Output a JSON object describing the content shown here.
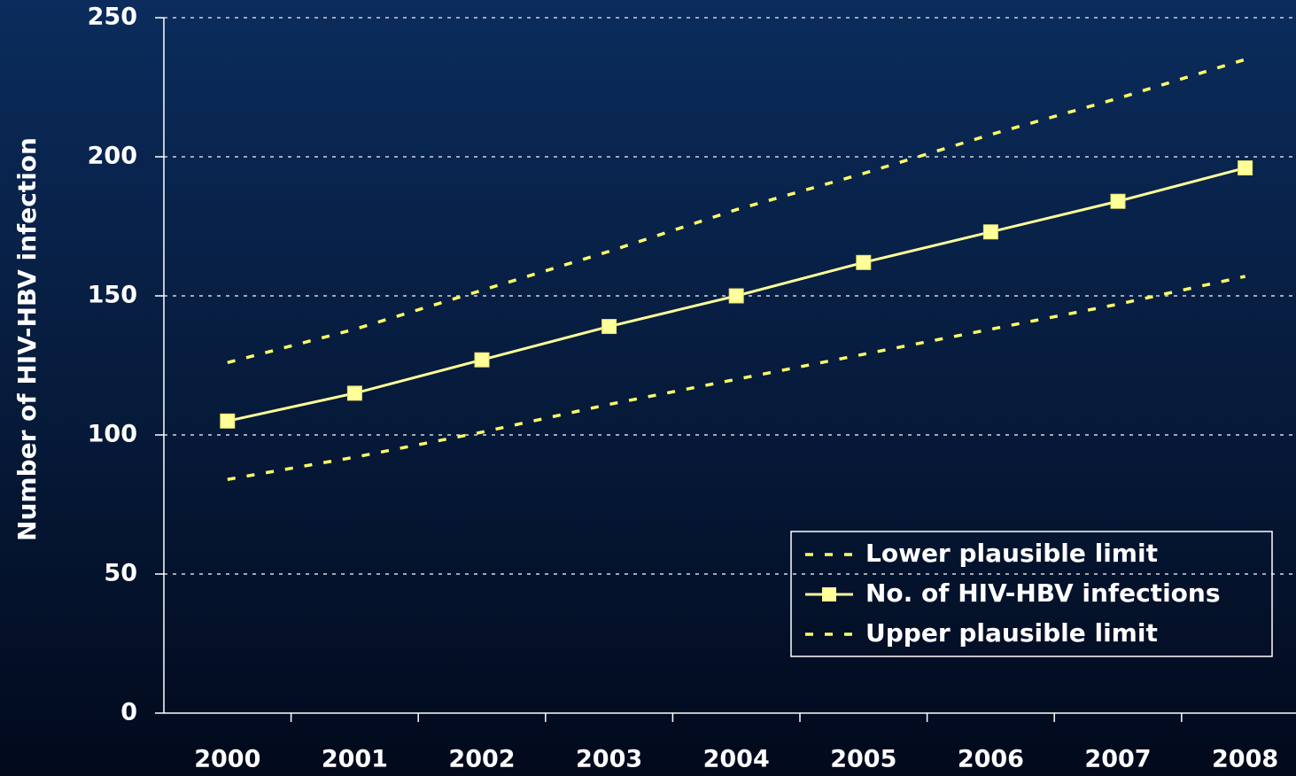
{
  "chart_data": {
    "type": "line",
    "y_label": "Number of HIV-HBV infection",
    "categories": [
      "2000",
      "2001",
      "2002",
      "2003",
      "2004",
      "2005",
      "2006",
      "2007",
      "2008"
    ],
    "series": [
      {
        "name": "Lower plausible limit",
        "color": "#ffff66",
        "dashed": true,
        "marker": "none",
        "values": [
          84,
          92,
          101,
          111,
          120,
          129,
          138,
          147,
          157
        ]
      },
      {
        "name": "No. of HIV-HBV infections",
        "color": "#ffff99",
        "dashed": false,
        "marker": "square",
        "values": [
          105,
          115,
          127,
          139,
          150,
          162,
          173,
          184,
          196
        ]
      },
      {
        "name": "Upper plausible limit",
        "color": "#ffff66",
        "dashed": true,
        "marker": "none",
        "values": [
          126,
          138,
          152,
          166,
          181,
          194,
          208,
          221,
          235
        ]
      }
    ],
    "ylim": [
      0,
      250
    ],
    "yticks": [
      0,
      50,
      100,
      150,
      200,
      250
    ],
    "grid": true,
    "legend": "lower right"
  }
}
